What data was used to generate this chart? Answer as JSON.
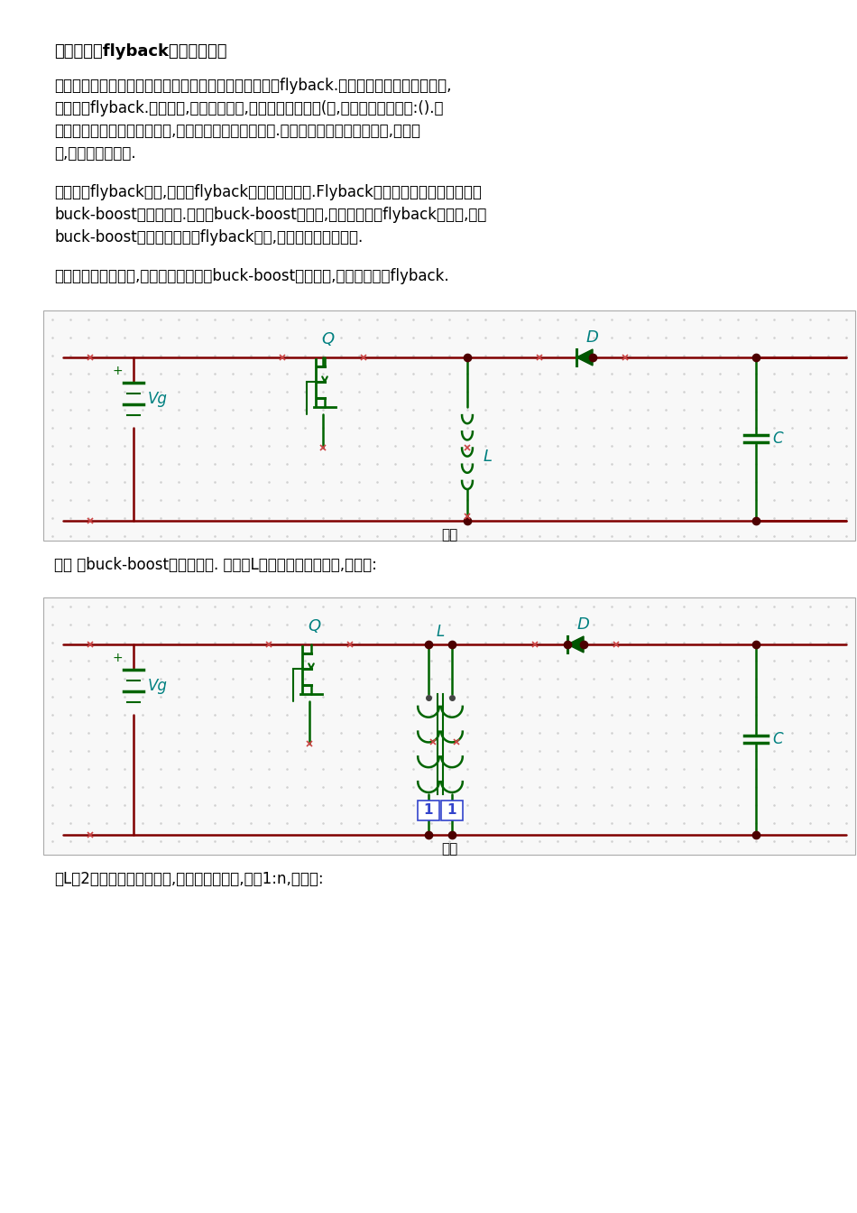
{
  "title": "》初学版「flyback的分析和设计",
  "title_display": "[初学版]flyback的分析和设计",
  "para1_lines": [
    "大家最早可能接触，也是可能接触最多的电路拓扑应该是flyback.至少我刚刚接触电源的时候,",
    "最先就是flyback.不会设计,连分析也不懂,唯一能做的是模仿(额,难听点就是抄袭了:().这",
    "样子的状态持续了一段时间后,才开始慢慢的有一些了解.为了让初学者能更快的上手,少走弯",
    "路,于是有了这一章."
  ],
  "para2_lines": [
    "为了分析flyback电路,我们仏flyback的源头开始说吧.Flyback是从最基本的三种电路中的",
    "buck-boost演变而来的.所以对buck-boost的分析,一定有助于对flyback的分析,而且",
    "buck-boost看起来似乎要比flyback简单,至少它没有变压器吧."
  ],
  "para3": "为了证明我没有骗你,下面将要开始来对buck-boost进行演变,最终会演变成flyback.",
  "desc1": "图一 是buck-boost的原型电路. 把电感L绕一个并联线圈出来,如图二:",
  "desc2": "把L的2个并联线圈断开连接,并且改变圈数比,改为1:n,如图三:",
  "bg_color": "#ffffff",
  "text_color": "#000000",
  "circuit_color": "#006400",
  "wire_color": "#800000",
  "dot_color": "#4d0000",
  "grid_color": "#d0d0d0",
  "label_color": "#008080",
  "mosfet_color": "#006400"
}
